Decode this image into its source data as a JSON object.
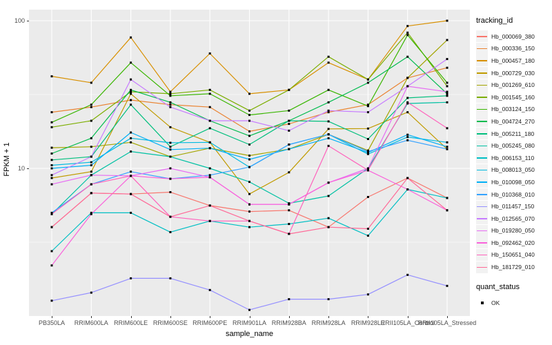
{
  "chart_data": {
    "type": "line",
    "title": "",
    "xlabel": "sample_name",
    "ylabel": "FPKM + 1",
    "y_scale": "log10",
    "ylim": [
      1,
      119
    ],
    "y_ticks": [
      100,
      10
    ],
    "y_minor_ticks": [
      31.62,
      3.162
    ],
    "grid": true,
    "panel_bg": "#EBEBEB",
    "grid_color": "#FFFFFF",
    "point_color": "#000000",
    "legend_position": "right",
    "legend_title": "tracking_id",
    "legend2_title": "quant_status",
    "legend2_items": [
      "OK"
    ],
    "categories": [
      "PB350LA",
      "RRIM600LA",
      "RRIM600LE",
      "RRIM600SE",
      "RRIM600PE",
      "RRIM901LA",
      "RRIM928BA",
      "RRIM928LA",
      "RRIM928LE",
      "RRII105LA_Control",
      "RRII105LA_Stressed"
    ],
    "series": [
      {
        "name": "Hb_000069_380",
        "color": "#F8766D",
        "values": [
          4.0,
          6.8,
          6.7,
          6.9,
          5.6,
          5.1,
          5.2,
          4.0,
          6.4,
          8.6,
          6.3
        ]
      },
      {
        "name": "Hb_000336_150",
        "color": "#EA8331",
        "values": [
          24,
          26,
          29,
          27,
          26,
          17.8,
          20,
          24,
          27,
          41,
          48
        ]
      },
      {
        "name": "Hb_000457_180",
        "color": "#D89000",
        "values": [
          42,
          38,
          77,
          33,
          60,
          32,
          34,
          52,
          40,
          92,
          100
        ]
      },
      {
        "name": "Hb_000729_030",
        "color": "#C09B00",
        "values": [
          8.6,
          9.5,
          32,
          19,
          15,
          6.7,
          9.4,
          18.5,
          18.6,
          24,
          13.5
        ]
      },
      {
        "name": "Hb_001269_610",
        "color": "#A3A500",
        "values": [
          13.8,
          14,
          15,
          12,
          13.7,
          12.2,
          13.5,
          17,
          13.2,
          41,
          74
        ]
      },
      {
        "name": "Hb_001545_160",
        "color": "#7CAE00",
        "values": [
          19,
          21,
          33,
          32,
          34,
          24.6,
          34,
          57,
          40,
          83,
          36
        ]
      },
      {
        "name": "Hb_003124_150",
        "color": "#39B600",
        "values": [
          20.5,
          27,
          52,
          31,
          32,
          23,
          24.6,
          34,
          26.4,
          80,
          38
        ]
      },
      {
        "name": "Hb_004724_270",
        "color": "#00BB4E",
        "values": [
          12.6,
          16,
          34,
          28,
          21,
          16.6,
          21,
          28,
          38,
          57,
          32
        ]
      },
      {
        "name": "Hb_005211_180",
        "color": "#00BF7D",
        "values": [
          11.4,
          12,
          27,
          14,
          18.7,
          14.5,
          21,
          20.8,
          15.8,
          30,
          31
        ]
      },
      {
        "name": "Hb_005245_080",
        "color": "#00C1A3",
        "values": [
          4.9,
          9,
          13,
          12,
          10,
          8.1,
          5.8,
          6.5,
          10,
          27.5,
          28
        ]
      },
      {
        "name": "Hb_006153_110",
        "color": "#00BFC4",
        "values": [
          2.75,
          5.0,
          5.0,
          3.7,
          4.4,
          4.0,
          4.2,
          4.6,
          3.5,
          7.2,
          6.3
        ]
      },
      {
        "name": "Hb_008013_050",
        "color": "#00BAE0",
        "values": [
          10.5,
          11,
          16,
          14.9,
          15,
          10.2,
          14.5,
          17,
          12.5,
          16.3,
          15
        ]
      },
      {
        "name": "Hb_010098_050",
        "color": "#00B0F6",
        "values": [
          10,
          10.5,
          17.5,
          13.4,
          13.7,
          11.5,
          13.5,
          16,
          12.8,
          16.9,
          14
        ]
      },
      {
        "name": "Hb_010368_010",
        "color": "#35A2FF",
        "values": [
          5.0,
          7.8,
          9.5,
          8.5,
          9,
          10.2,
          14.5,
          17,
          13,
          15.5,
          13.5
        ]
      },
      {
        "name": "Hb_011457_150",
        "color": "#9590FF",
        "values": [
          1.27,
          1.44,
          1.8,
          1.8,
          1.5,
          1.1,
          1.3,
          1.3,
          1.4,
          1.9,
          1.6
        ]
      },
      {
        "name": "Hb_012565_070",
        "color": "#C77CFF",
        "values": [
          9,
          12,
          40,
          26,
          21,
          21,
          18,
          24.6,
          24,
          36,
          55
        ]
      },
      {
        "name": "Hb_019280_050",
        "color": "#E76BF3",
        "values": [
          7.8,
          9,
          8.9,
          10,
          8.7,
          5.7,
          5.7,
          8,
          10,
          36,
          33
        ]
      },
      {
        "name": "Hb_092462_020",
        "color": "#FA62DB",
        "values": [
          2.2,
          4.9,
          8.9,
          8.5,
          8.7,
          5.7,
          5.7,
          8,
          9.7,
          7.2,
          5.2
        ]
      },
      {
        "name": "Hb_150651_040",
        "color": "#FF62BC",
        "values": [
          4.9,
          7.8,
          8.9,
          4.7,
          4.4,
          4.4,
          3.6,
          14.2,
          9.7,
          28,
          18.7
        ]
      },
      {
        "name": "Hb_181729_010",
        "color": "#FF6A98",
        "values": [
          4.0,
          6.8,
          6.7,
          4.7,
          5.6,
          4.4,
          3.6,
          4.0,
          3.9,
          8.6,
          5.2
        ]
      }
    ]
  }
}
